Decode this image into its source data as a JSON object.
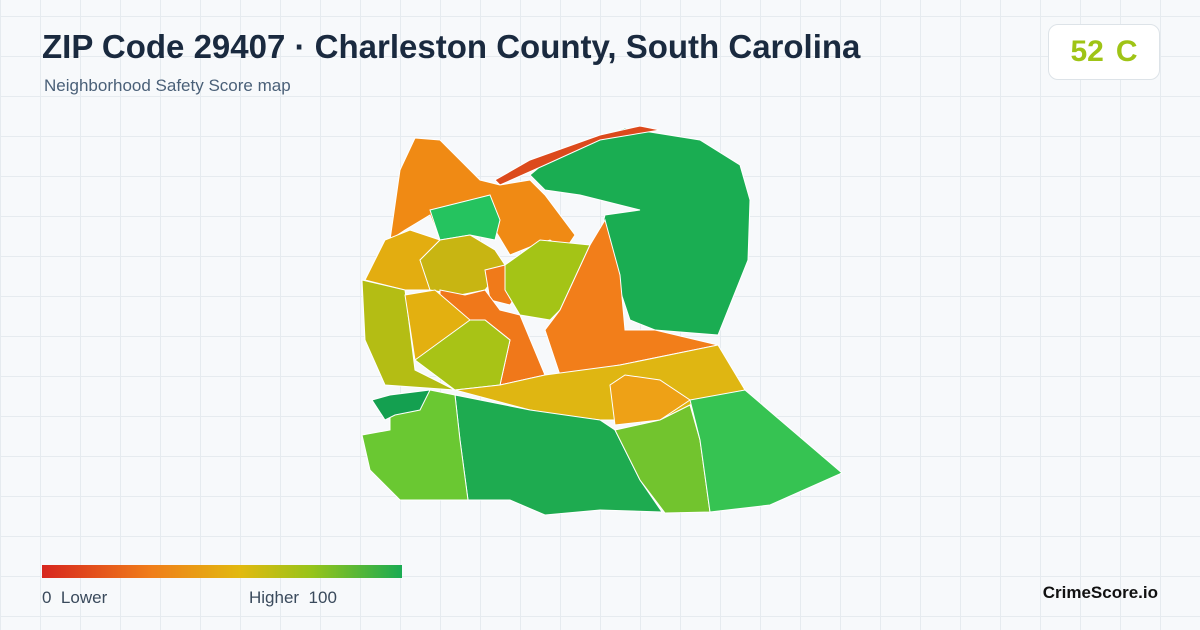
{
  "header": {
    "title": "ZIP Code 29407 · Charleston County, South Carolina",
    "subtitle": "Neighborhood Safety Score map"
  },
  "score": {
    "value": 52,
    "grade": "C"
  },
  "legend": {
    "min": 0,
    "min_label": "Lower",
    "max_label": "Higher",
    "max": 100
  },
  "brand": "CrimeScore.io"
}
